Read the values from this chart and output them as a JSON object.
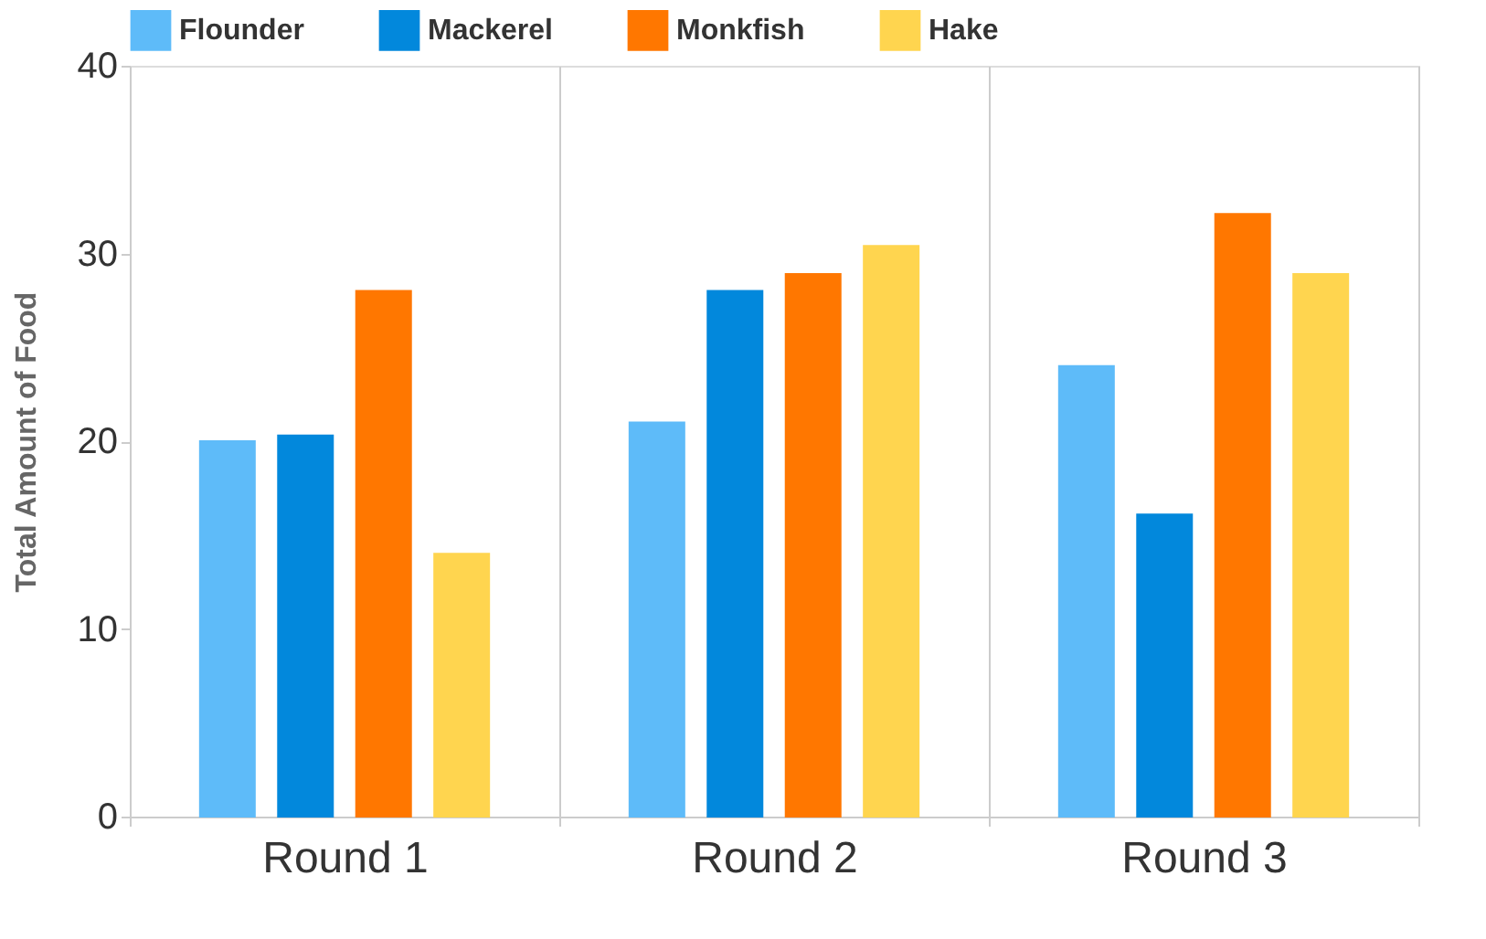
{
  "chart_data": {
    "type": "bar",
    "ylabel": "Total Amount of Food",
    "categories": [
      "Round 1",
      "Round 2",
      "Round 3"
    ],
    "series": [
      {
        "name": "Flounder",
        "color": "#5ebbf9",
        "values": [
          20,
          21,
          24
        ]
      },
      {
        "name": "Mackerel",
        "color": "#0288dc",
        "values": [
          20.3,
          28,
          16.1
        ]
      },
      {
        "name": "Monkfish",
        "color": "#ff7700",
        "values": [
          28,
          28.9,
          32.1
        ]
      },
      {
        "name": "Hake",
        "color": "#ffd54f",
        "values": [
          14,
          30.4,
          28.9
        ]
      }
    ],
    "ylim": [
      0,
      40
    ],
    "yticks": [
      0,
      10,
      20,
      30,
      40
    ],
    "grid": "x",
    "legend": "top"
  }
}
